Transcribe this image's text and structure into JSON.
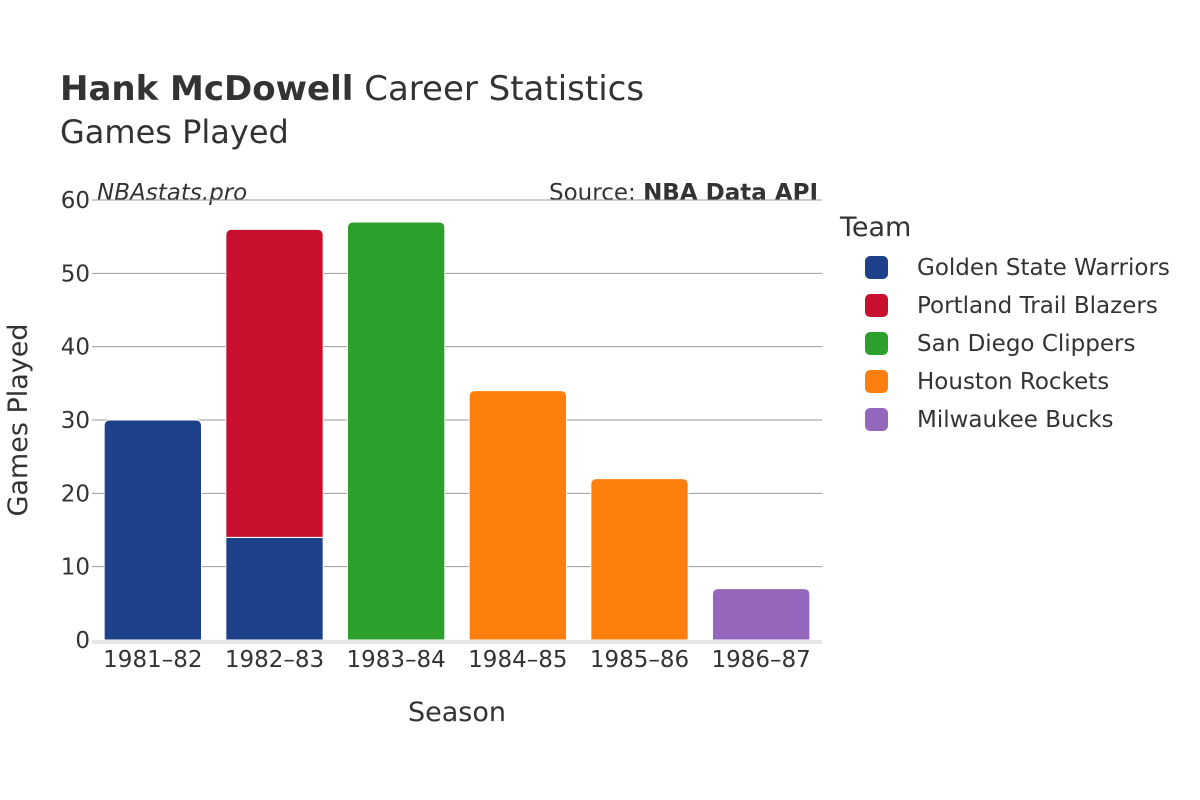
{
  "title": {
    "name": "Hank McDowell",
    "rest": " Career Statistics",
    "subtitle": "Games Played"
  },
  "watermark": "NBAstats.pro",
  "source": {
    "prefix": "Source: ",
    "name": "NBA Data API"
  },
  "chart_data": {
    "type": "bar",
    "stacked": true,
    "categories": [
      "1981–82",
      "1982–83",
      "1983–84",
      "1984–85",
      "1985–86",
      "1986–87"
    ],
    "xlabel": "Season",
    "ylabel": "Games Played",
    "ylim": [
      0,
      60
    ],
    "yticks": [
      0,
      10,
      20,
      30,
      40,
      50,
      60
    ],
    "grid": true,
    "legend": {
      "title": "Team",
      "position": "right"
    },
    "series": [
      {
        "name": "Golden State Warriors",
        "color": "#1d428a",
        "values": [
          30,
          14,
          0,
          0,
          0,
          0
        ]
      },
      {
        "name": "Portland Trail Blazers",
        "color": "#c8102e",
        "values": [
          0,
          42,
          0,
          0,
          0,
          0
        ]
      },
      {
        "name": "San Diego Clippers",
        "color": "#2ca02c",
        "values": [
          0,
          0,
          57,
          0,
          0,
          0
        ]
      },
      {
        "name": "Houston Rockets",
        "color": "#ff7f0e",
        "values": [
          0,
          0,
          0,
          34,
          22,
          0
        ]
      },
      {
        "name": "Milwaukee Bucks",
        "color": "#9467bd",
        "values": [
          0,
          0,
          0,
          0,
          0,
          7
        ]
      }
    ]
  }
}
